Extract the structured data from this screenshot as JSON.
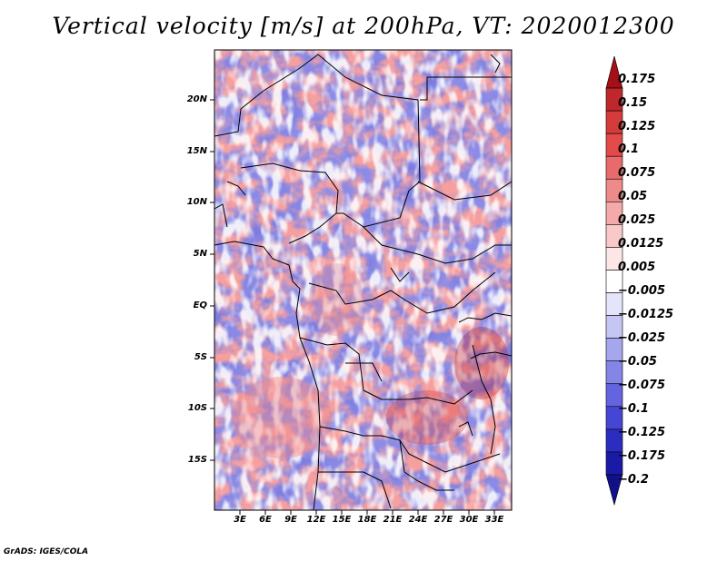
{
  "title": "Vertical velocity [m/s] at 200hPa, VT: 2020012300",
  "footer": "GrADS: IGES/COLA",
  "map": {
    "lat_range": [
      -20,
      25
    ],
    "lon_range": [
      0,
      35
    ],
    "lat_ticks": [
      "20N",
      "15N",
      "10N",
      "5N",
      "EQ",
      "5S",
      "10S",
      "15S"
    ],
    "lon_ticks": [
      "3E",
      "6E",
      "9E",
      "12E",
      "15E",
      "18E",
      "21E",
      "24E",
      "27E",
      "30E",
      "33E"
    ]
  },
  "colorbar": {
    "labels": [
      "0.175",
      "0.15",
      "0.125",
      "0.1",
      "0.075",
      "0.05",
      "0.025",
      "0.0125",
      "0.005",
      "−0.005",
      "−0.0125",
      "−0.025",
      "−0.05",
      "−0.075",
      "−0.1",
      "−0.125",
      "−0.175",
      "−0.2"
    ],
    "colors": [
      "#a50f15",
      "#c0272d",
      "#d63b3b",
      "#e34a4a",
      "#e86a6a",
      "#ef8a8a",
      "#f4aaaa",
      "#f9c8c8",
      "#fde6e6",
      "#ffffff",
      "#e4e4fb",
      "#c6c6f5",
      "#a6a6ef",
      "#8585e8",
      "#6464e0",
      "#4646d4",
      "#2c2cc0",
      "#1a1aa6",
      "#10108a"
    ]
  }
}
